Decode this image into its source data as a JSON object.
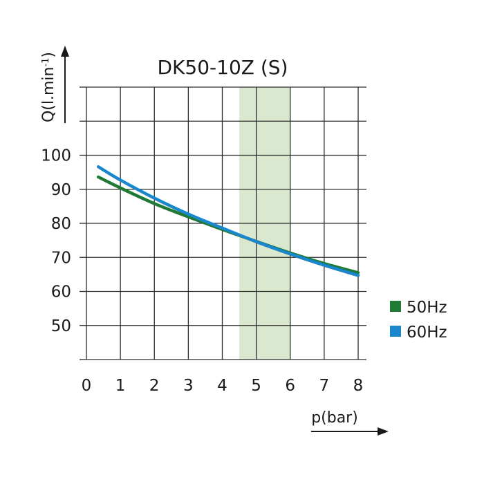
{
  "chart_data": {
    "type": "line",
    "title": "DK50-10Z (S)",
    "xlabel": "p(bar)",
    "ylabel_main": "Q(l.min",
    "ylabel_sup": "-1",
    "ylabel_close": ")",
    "xlim": [
      0,
      8
    ],
    "ylim": [
      40,
      120
    ],
    "x_ticks": [
      "0",
      "1",
      "2",
      "3",
      "4",
      "5",
      "6",
      "7",
      "8"
    ],
    "y_ticks": [
      {
        "value": 50,
        "label": "50"
      },
      {
        "value": 60,
        "label": "60"
      },
      {
        "value": 70,
        "label": "70"
      },
      {
        "value": 80,
        "label": "80"
      },
      {
        "value": 90,
        "label": "90"
      },
      {
        "value": 100,
        "label": "100"
      }
    ],
    "grid": true,
    "highlight_band": {
      "x": [
        4.5,
        6
      ],
      "color": "#d9e8cf"
    },
    "legend_position": "right",
    "series": [
      {
        "name": "50Hz",
        "color": "#1e7a34",
        "x": [
          0.35,
          1,
          2,
          3,
          4,
          5,
          6,
          7,
          8
        ],
        "y": [
          93.6,
          90.4,
          85.8,
          81.9,
          78.2,
          74.7,
          71.3,
          68.2,
          65.5
        ]
      },
      {
        "name": "60Hz",
        "color": "#1a86cc",
        "x": [
          0.35,
          1,
          2,
          3,
          4,
          5,
          6,
          7,
          8
        ],
        "y": [
          96.6,
          92.7,
          87.4,
          82.7,
          78.6,
          74.6,
          71.0,
          67.7,
          64.7
        ]
      }
    ]
  }
}
